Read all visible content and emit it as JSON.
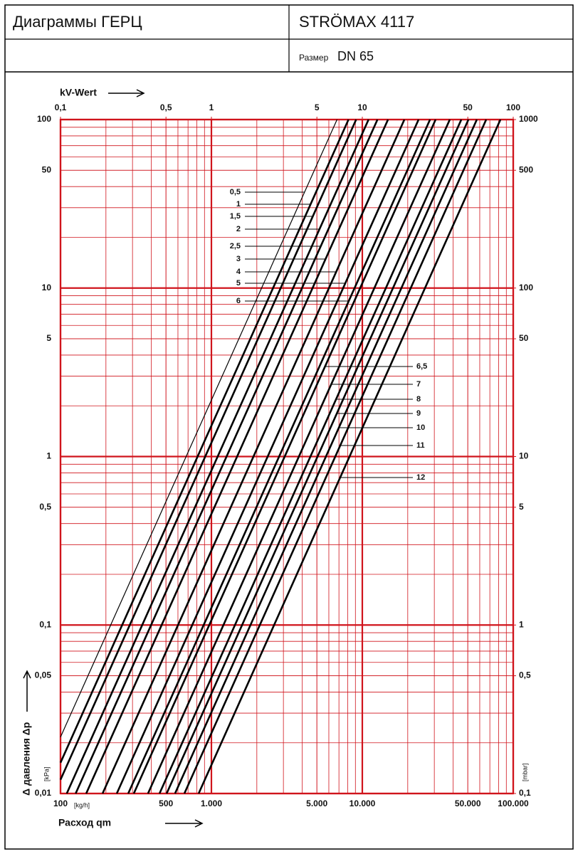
{
  "header": {
    "title": "Диаграммы ГЕРЦ",
    "product": "STRÖMAX 4117",
    "size_label": "Размер",
    "size_value": "DN 65"
  },
  "chart_data": {
    "type": "kv-lines",
    "top_axis_label": "kV-Wert",
    "x_axis_label": "Расход qm",
    "x_unit": "[kg/h]",
    "y_axis_label": "Δ давления Δp",
    "y_unit": "[kPa]",
    "y2_unit": "[mbar]",
    "xlim": [
      100,
      100000
    ],
    "xticks": [
      100,
      500,
      {
        "value": 1000,
        "label": "1.000"
      },
      {
        "value": 5000,
        "label": "5.000"
      },
      {
        "value": 10000,
        "label": "10.000"
      },
      {
        "value": 50000,
        "label": "50.000"
      },
      {
        "value": 100000,
        "label": "100.000"
      }
    ],
    "x2lim": [
      0.1,
      100
    ],
    "x2ticks": [
      {
        "value": 0.1,
        "label": "0,1"
      },
      {
        "value": 0.5,
        "label": "0,5"
      },
      1,
      5,
      10,
      50,
      100
    ],
    "ylim": [
      0.01,
      100
    ],
    "yticks": [
      {
        "value": 0.01,
        "label": "0,01"
      },
      {
        "value": 0.05,
        "label": "0,05"
      },
      {
        "value": 0.1,
        "label": "0,1"
      },
      {
        "value": 0.5,
        "label": "0,5"
      },
      1,
      5,
      10,
      50,
      100
    ],
    "y2lim": [
      0.1,
      1000
    ],
    "y2ticks": [
      {
        "value": 0.1,
        "label": "0,1"
      },
      {
        "value": 0.5,
        "label": "0,5"
      },
      1,
      5,
      10,
      50,
      100,
      500,
      1000
    ],
    "log_scale": true,
    "grid": true,
    "grid_color": "#d0141c",
    "line_color": "#000000",
    "series": [
      {
        "name": "0,5",
        "kv": 6.8
      },
      {
        "name": "1",
        "kv": 8.1
      },
      {
        "name": "1,5",
        "kv": 9.1
      },
      {
        "name": "2",
        "kv": 11
      },
      {
        "name": "2,5",
        "kv": 12.6
      },
      {
        "name": "3",
        "kv": 14.8
      },
      {
        "name": "4",
        "kv": 19
      },
      {
        "name": "5",
        "kv": 23.6
      },
      {
        "name": "6",
        "kv": 28.1
      },
      {
        "name": "6,5",
        "kv": 30.6
      },
      {
        "name": "7",
        "kv": 38
      },
      {
        "name": "8",
        "kv": 45.3
      },
      {
        "name": "9",
        "kv": 50.5
      },
      {
        "name": "10",
        "kv": 57.4
      },
      {
        "name": "11",
        "kv": 66.2
      },
      {
        "name": "12",
        "kv": 82.3
      }
    ]
  }
}
